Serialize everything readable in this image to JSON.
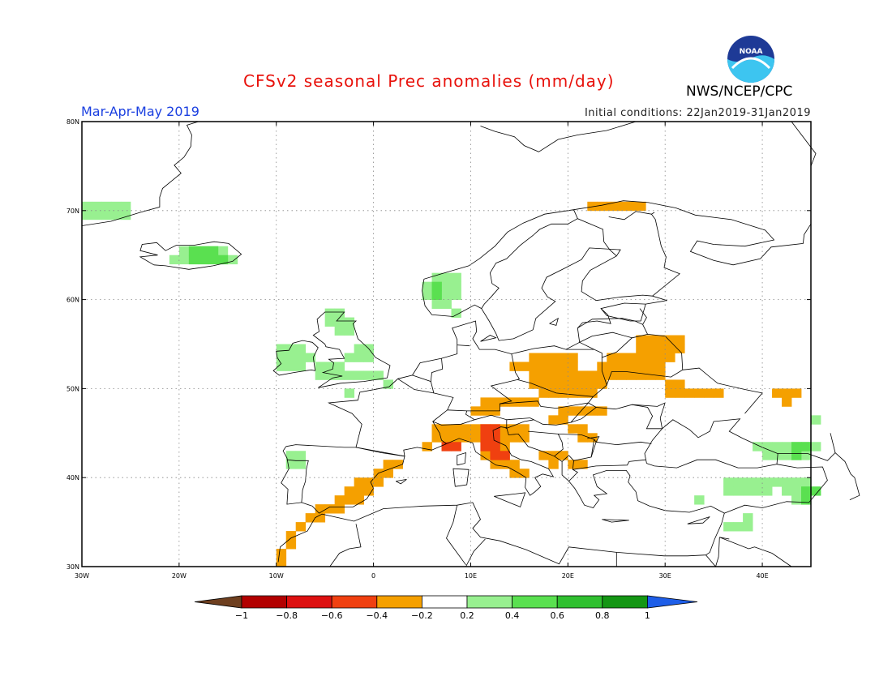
{
  "title": "CFSv2 seasonal Prec anomalies (mm/day)",
  "season": "Mar-Apr-May 2019",
  "initial_conditions": "Initial conditions: 22Jan2019-31Jan2019",
  "agency": "NWS/NCEP/CPC",
  "logo_text": "NOAA",
  "map": {
    "lon_range": [
      -30,
      45
    ],
    "lat_range": [
      30,
      80
    ],
    "x_ticks": [
      {
        "lon": -30,
        "label": "30W"
      },
      {
        "lon": -20,
        "label": "20W"
      },
      {
        "lon": -10,
        "label": "10W"
      },
      {
        "lon": 0,
        "label": "0"
      },
      {
        "lon": 10,
        "label": "10E"
      },
      {
        "lon": 20,
        "label": "20E"
      },
      {
        "lon": 30,
        "label": "30E"
      },
      {
        "lon": 40,
        "label": "40E"
      }
    ],
    "y_ticks": [
      {
        "lat": 30,
        "label": "30N"
      },
      {
        "lat": 40,
        "label": "40N"
      },
      {
        "lat": 50,
        "label": "50N"
      },
      {
        "lat": 60,
        "label": "60N"
      },
      {
        "lat": 70,
        "label": "70N"
      },
      {
        "lat": 80,
        "label": "80N"
      }
    ],
    "anomaly_regions": [
      {
        "name": "Iberia east coast",
        "value": -0.3,
        "cells": [
          [
            -1,
            39
          ],
          [
            -2,
            38
          ],
          [
            -3,
            37
          ],
          [
            -4,
            37
          ],
          [
            -5,
            36
          ],
          [
            -6,
            36
          ],
          [
            -7,
            35
          ],
          [
            -8,
            34
          ],
          [
            -9,
            33
          ],
          [
            -10,
            31
          ],
          [
            0,
            40
          ],
          [
            1,
            41
          ],
          [
            2,
            41
          ],
          [
            -3,
            38
          ],
          [
            -2,
            39
          ],
          [
            -4,
            36
          ],
          [
            -6,
            35
          ],
          [
            -9,
            32
          ],
          [
            -10,
            30
          ],
          [
            -1,
            38
          ],
          [
            -2,
            37
          ],
          [
            0,
            39
          ],
          [
            1,
            40
          ]
        ]
      },
      {
        "name": "Alps and southern France",
        "value": -0.3,
        "cells": [
          [
            6,
            44
          ],
          [
            7,
            44
          ],
          [
            8,
            44
          ],
          [
            9,
            44
          ],
          [
            9,
            45
          ],
          [
            10,
            45
          ],
          [
            11,
            45
          ],
          [
            12,
            45
          ],
          [
            13,
            45
          ],
          [
            14,
            45
          ],
          [
            15,
            45
          ],
          [
            8,
            45
          ],
          [
            12,
            44
          ],
          [
            13,
            44
          ],
          [
            14,
            44
          ],
          [
            11,
            43
          ],
          [
            12,
            43
          ],
          [
            13,
            43
          ],
          [
            11,
            42
          ],
          [
            12,
            42
          ],
          [
            13,
            42
          ],
          [
            12,
            41
          ],
          [
            13,
            41
          ],
          [
            14,
            41
          ],
          [
            14,
            40
          ],
          [
            15,
            40
          ],
          [
            6,
            45
          ],
          [
            7,
            45
          ],
          [
            5,
            43
          ],
          [
            10,
            44
          ],
          [
            15,
            44
          ]
        ]
      },
      {
        "name": "Italy strong",
        "value": -0.5,
        "cells": [
          [
            11,
            45
          ],
          [
            12,
            45
          ],
          [
            12,
            44
          ],
          [
            11,
            44
          ],
          [
            11,
            43
          ],
          [
            12,
            43
          ],
          [
            13,
            42
          ],
          [
            12,
            42
          ],
          [
            7,
            43
          ],
          [
            8,
            43
          ]
        ]
      },
      {
        "name": "Central Europe",
        "value": -0.3,
        "cells": [
          [
            10,
            47
          ],
          [
            11,
            47
          ],
          [
            12,
            47
          ],
          [
            11,
            48
          ],
          [
            12,
            48
          ],
          [
            13,
            48
          ],
          [
            14,
            48
          ],
          [
            15,
            48
          ],
          [
            16,
            48
          ],
          [
            17,
            49
          ],
          [
            18,
            49
          ],
          [
            19,
            49
          ],
          [
            20,
            49
          ],
          [
            21,
            49
          ],
          [
            22,
            49
          ],
          [
            16,
            50
          ],
          [
            17,
            50
          ],
          [
            18,
            50
          ],
          [
            19,
            50
          ],
          [
            20,
            50
          ],
          [
            21,
            50
          ],
          [
            22,
            50
          ],
          [
            23,
            50
          ],
          [
            16,
            51
          ],
          [
            17,
            51
          ],
          [
            18,
            51
          ],
          [
            19,
            51
          ],
          [
            20,
            51
          ],
          [
            21,
            51
          ],
          [
            22,
            51
          ],
          [
            23,
            51
          ],
          [
            14,
            52
          ],
          [
            15,
            52
          ],
          [
            16,
            52
          ],
          [
            17,
            52
          ],
          [
            18,
            52
          ],
          [
            19,
            52
          ],
          [
            20,
            52
          ],
          [
            16,
            53
          ],
          [
            17,
            53
          ],
          [
            18,
            53
          ],
          [
            19,
            53
          ],
          [
            20,
            53
          ],
          [
            19,
            47
          ],
          [
            20,
            47
          ],
          [
            21,
            47
          ],
          [
            18,
            46
          ],
          [
            19,
            46
          ],
          [
            20,
            45
          ],
          [
            21,
            45
          ],
          [
            21,
            44
          ],
          [
            22,
            44
          ],
          [
            17,
            42
          ],
          [
            18,
            42
          ],
          [
            19,
            42
          ],
          [
            18,
            41
          ],
          [
            20,
            41
          ],
          [
            21,
            41
          ],
          [
            22,
            47
          ],
          [
            23,
            47
          ]
        ]
      },
      {
        "name": "Belarus Ukraine",
        "value": -0.3,
        "cells": [
          [
            23,
            52
          ],
          [
            24,
            52
          ],
          [
            25,
            52
          ],
          [
            26,
            52
          ],
          [
            27,
            52
          ],
          [
            28,
            52
          ],
          [
            29,
            52
          ],
          [
            23,
            51
          ],
          [
            24,
            51
          ],
          [
            25,
            51
          ],
          [
            26,
            51
          ],
          [
            27,
            51
          ],
          [
            28,
            51
          ],
          [
            29,
            51
          ],
          [
            24,
            53
          ],
          [
            25,
            53
          ],
          [
            26,
            53
          ],
          [
            27,
            53
          ],
          [
            28,
            53
          ],
          [
            29,
            53
          ],
          [
            30,
            53
          ],
          [
            27,
            54
          ],
          [
            28,
            54
          ],
          [
            29,
            54
          ],
          [
            30,
            54
          ],
          [
            31,
            54
          ],
          [
            27,
            55
          ],
          [
            28,
            55
          ],
          [
            29,
            55
          ],
          [
            30,
            55
          ],
          [
            31,
            55
          ],
          [
            30,
            49
          ],
          [
            31,
            49
          ],
          [
            32,
            49
          ],
          [
            33,
            49
          ],
          [
            34,
            49
          ],
          [
            30,
            50
          ],
          [
            31,
            50
          ],
          [
            35,
            49
          ]
        ]
      },
      {
        "name": "Russia east",
        "value": -0.3,
        "cells": [
          [
            41,
            49
          ],
          [
            42,
            49
          ],
          [
            43,
            49
          ],
          [
            42,
            48
          ]
        ]
      },
      {
        "name": "Nordkapp",
        "value": -0.3,
        "cells": [
          [
            22,
            70
          ],
          [
            23,
            70
          ],
          [
            24,
            70
          ],
          [
            25,
            70
          ],
          [
            26,
            70
          ],
          [
            27,
            70
          ]
        ]
      },
      {
        "name": "Iceland",
        "value": 0.3,
        "cells": [
          [
            -21,
            64
          ],
          [
            -20,
            64
          ],
          [
            -19,
            64
          ],
          [
            -18,
            64
          ],
          [
            -17,
            64
          ],
          [
            -16,
            64
          ],
          [
            -15,
            64
          ],
          [
            -20,
            65
          ],
          [
            -19,
            65
          ],
          [
            -18,
            65
          ],
          [
            -17,
            65
          ],
          [
            -16,
            65
          ]
        ]
      },
      {
        "name": "Iceland strong",
        "value": 0.5,
        "cells": [
          [
            -19,
            65
          ],
          [
            -18,
            65
          ],
          [
            -17,
            65
          ],
          [
            -19,
            64
          ],
          [
            -18,
            64
          ],
          [
            -17,
            64
          ],
          [
            -16,
            64
          ]
        ]
      },
      {
        "name": "Greenland coast",
        "value": 0.3,
        "cells": [
          [
            -30,
            69
          ],
          [
            -29,
            69
          ],
          [
            -28,
            69
          ],
          [
            -27,
            69
          ],
          [
            -26,
            69
          ],
          [
            -30,
            70
          ],
          [
            -29,
            70
          ],
          [
            -28,
            70
          ],
          [
            -27,
            70
          ],
          [
            -26,
            70
          ]
        ]
      },
      {
        "name": "Ireland UK",
        "value": 0.3,
        "cells": [
          [
            -10,
            52
          ],
          [
            -9,
            52
          ],
          [
            -8,
            52
          ],
          [
            -10,
            53
          ],
          [
            -9,
            53
          ],
          [
            -8,
            53
          ],
          [
            -7,
            53
          ],
          [
            -10,
            54
          ],
          [
            -9,
            54
          ],
          [
            -8,
            54
          ],
          [
            -5,
            57
          ],
          [
            -4,
            57
          ],
          [
            -3,
            57
          ],
          [
            -5,
            58
          ],
          [
            -4,
            58
          ],
          [
            -4,
            56
          ],
          [
            -3,
            56
          ],
          [
            -2,
            54
          ],
          [
            -1,
            54
          ],
          [
            -3,
            53
          ],
          [
            -2,
            53
          ],
          [
            -1,
            53
          ],
          [
            -6,
            51
          ],
          [
            -5,
            51
          ],
          [
            -4,
            51
          ],
          [
            -3,
            51
          ],
          [
            -2,
            51
          ],
          [
            -1,
            51
          ],
          [
            0,
            51
          ],
          [
            -6,
            52
          ],
          [
            -5,
            52
          ],
          [
            -4,
            52
          ],
          [
            -3,
            49
          ],
          [
            1,
            50
          ]
        ]
      },
      {
        "name": "Norway west",
        "value": 0.3,
        "cells": [
          [
            5,
            61
          ],
          [
            6,
            61
          ],
          [
            7,
            61
          ],
          [
            8,
            61
          ],
          [
            5,
            60
          ],
          [
            6,
            60
          ],
          [
            7,
            60
          ],
          [
            8,
            60
          ],
          [
            6,
            62
          ],
          [
            7,
            62
          ],
          [
            8,
            62
          ],
          [
            6,
            59
          ],
          [
            7,
            59
          ],
          [
            8,
            58
          ]
        ]
      },
      {
        "name": "Norway strong",
        "value": 0.5,
        "cells": [
          [
            6,
            61
          ],
          [
            6,
            60
          ]
        ]
      },
      {
        "name": "Portugal",
        "value": 0.3,
        "cells": [
          [
            -9,
            42
          ],
          [
            -8,
            42
          ],
          [
            -9,
            41
          ],
          [
            -8,
            41
          ]
        ]
      },
      {
        "name": "Caspian",
        "value": 0.3,
        "cells": [
          [
            36,
            39
          ],
          [
            37,
            39
          ],
          [
            38,
            39
          ],
          [
            39,
            39
          ],
          [
            40,
            39
          ],
          [
            41,
            39
          ],
          [
            42,
            39
          ],
          [
            43,
            39
          ],
          [
            44,
            39
          ],
          [
            36,
            38
          ],
          [
            37,
            38
          ],
          [
            38,
            38
          ],
          [
            39,
            38
          ],
          [
            40,
            38
          ],
          [
            42,
            38
          ],
          [
            43,
            38
          ],
          [
            44,
            38
          ],
          [
            43,
            37
          ],
          [
            44,
            37
          ],
          [
            42,
            43
          ],
          [
            43,
            43
          ],
          [
            44,
            43
          ],
          [
            45,
            43
          ],
          [
            40,
            43
          ],
          [
            41,
            43
          ],
          [
            39,
            43
          ],
          [
            40,
            42
          ],
          [
            41,
            42
          ],
          [
            42,
            42
          ],
          [
            43,
            42
          ],
          [
            44,
            42
          ],
          [
            45,
            46
          ],
          [
            33,
            37
          ],
          [
            38,
            34
          ],
          [
            37,
            34
          ],
          [
            38,
            35
          ],
          [
            36,
            34
          ]
        ]
      },
      {
        "name": "Caspian strong",
        "value": 0.5,
        "cells": [
          [
            43,
            43
          ],
          [
            44,
            43
          ],
          [
            43,
            42
          ],
          [
            44,
            38
          ],
          [
            44,
            37
          ],
          [
            45,
            38
          ]
        ]
      }
    ]
  },
  "colorbar": {
    "labels": [
      "-1",
      "-0.8",
      "-0.6",
      "-0.4",
      "-0.2",
      "0.2",
      "0.4",
      "0.6",
      "0.8",
      "1"
    ],
    "colors": [
      "#6e3f1f",
      "#b20000",
      "#dd1010",
      "#f04010",
      "#f5a000",
      "#ffffff",
      "#98f090",
      "#5ae050",
      "#30c030",
      "#149614",
      "#1e5ee8"
    ]
  },
  "land_fill": "#ffffff",
  "coast_color": "#000000"
}
